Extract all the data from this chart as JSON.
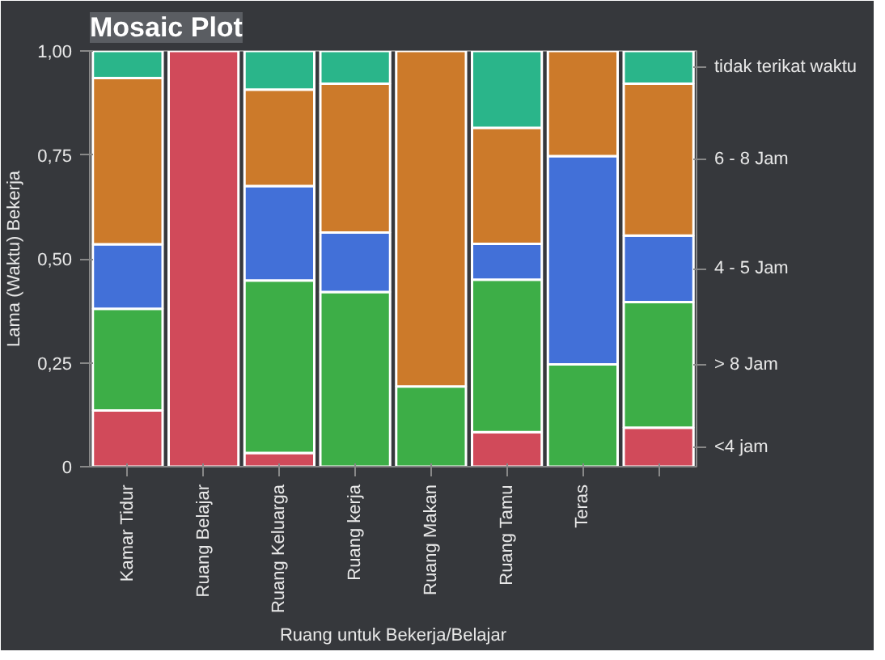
{
  "chart_data": {
    "type": "bar",
    "title": "Mosaic Plot",
    "xlabel": "Ruang untuk Bekerja/Belajar",
    "ylabel": "Lama (Waktu) Bekerja",
    "stacked": true,
    "categories": [
      "Kamar Tidur",
      "Ruang Belajar",
      "Ruang Keluarga",
      "Ruang kerja",
      "Ruang Makan",
      "Ruang Tamu",
      "Teras",
      null
    ],
    "ylim": [
      0,
      1
    ],
    "yticks": [
      {
        "value": 0,
        "label": "0"
      },
      {
        "value": 0.25,
        "label": "0,25"
      },
      {
        "value": 0.5,
        "label": "0,50"
      },
      {
        "value": 0.75,
        "label": "0,75"
      },
      {
        "value": 1,
        "label": "1,00"
      }
    ],
    "grid": false,
    "series": [
      {
        "name": "<4 jam",
        "color": "#d14a5a",
        "values": [
          0.135,
          1.0,
          0.033,
          0,
          0,
          0.083,
          0,
          0.094
        ]
      },
      {
        "name": ">  8 Jam",
        "color": "#3dae47",
        "values": [
          0.245,
          0,
          0.415,
          0.42,
          0.193,
          0.367,
          0.246,
          0.302
        ]
      },
      {
        "name": "4 - 5 Jam",
        "color": "#4270d8",
        "values": [
          0.155,
          0,
          0.227,
          0.143,
          0,
          0.086,
          0.501,
          0.16
        ]
      },
      {
        "name": "6 - 8 Jam",
        "color": "#cc7a2a",
        "values": [
          0.4,
          0,
          0.232,
          0.358,
          0.807,
          0.279,
          0.253,
          0.365
        ]
      },
      {
        "name": "tidak terikat waktu",
        "color": "#2ab58a",
        "values": [
          0.065,
          0,
          0.093,
          0.079,
          0,
          0.185,
          0,
          0.079
        ]
      }
    ]
  }
}
